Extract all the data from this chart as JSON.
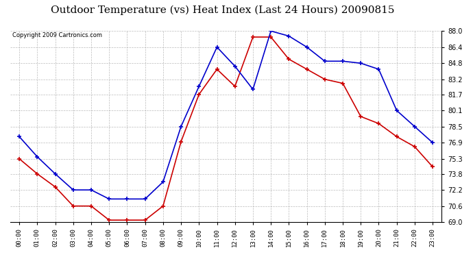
{
  "title": "Outdoor Temperature (vs) Heat Index (Last 24 Hours) 20090815",
  "copyright": "Copyright 2009 Cartronics.com",
  "hours": [
    "00:00",
    "01:00",
    "02:00",
    "03:00",
    "04:00",
    "05:00",
    "06:00",
    "07:00",
    "08:00",
    "09:00",
    "10:00",
    "11:00",
    "12:00",
    "13:00",
    "14:00",
    "15:00",
    "16:00",
    "17:00",
    "18:00",
    "19:00",
    "20:00",
    "21:00",
    "22:00",
    "23:00"
  ],
  "temp": [
    75.3,
    73.8,
    72.5,
    70.6,
    70.6,
    69.2,
    69.2,
    69.2,
    70.6,
    77.0,
    81.7,
    84.2,
    82.5,
    87.4,
    87.4,
    85.2,
    84.2,
    83.2,
    82.8,
    79.5,
    78.8,
    77.5,
    76.5,
    74.5
  ],
  "heat_index": [
    77.5,
    75.5,
    73.8,
    72.2,
    72.2,
    71.3,
    71.3,
    71.3,
    73.0,
    78.5,
    82.5,
    86.4,
    84.5,
    82.2,
    88.0,
    87.5,
    86.4,
    85.0,
    85.0,
    84.8,
    84.2,
    80.1,
    78.5,
    76.9
  ],
  "ylim": [
    69.0,
    88.0
  ],
  "yticks": [
    69.0,
    70.6,
    72.2,
    73.8,
    75.3,
    76.9,
    78.5,
    80.1,
    81.7,
    83.2,
    84.8,
    86.4,
    88.0
  ],
  "temp_color": "#CC0000",
  "heat_index_color": "#0000CC",
  "bg_color": "#FFFFFF",
  "plot_bg_color": "#FFFFFF",
  "grid_color": "#AAAAAA",
  "title_fontsize": 11,
  "copyright_fontsize": 6
}
